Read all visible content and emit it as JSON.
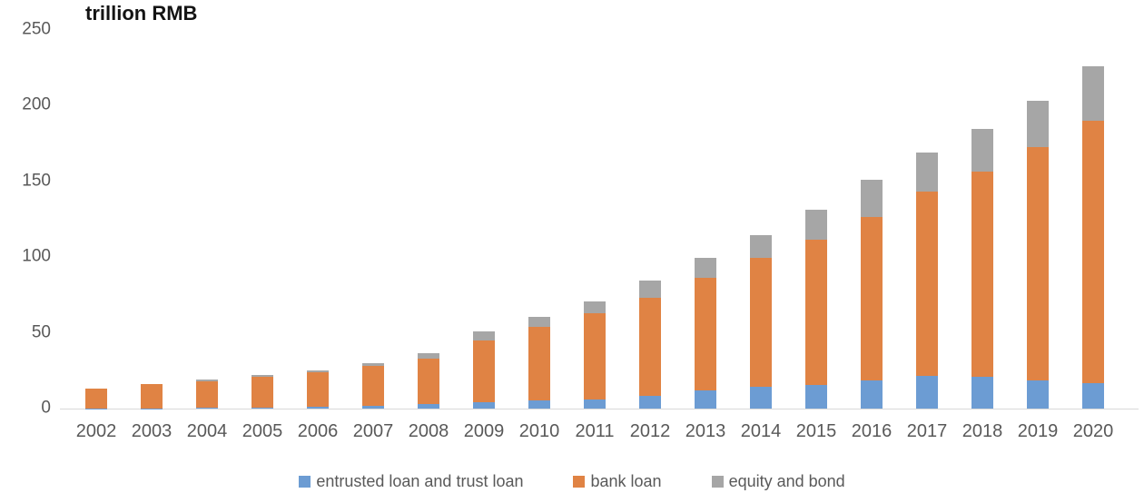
{
  "chart_data": {
    "type": "bar",
    "stacked": true,
    "title": "trillion RMB",
    "categories": [
      "2002",
      "2003",
      "2004",
      "2005",
      "2006",
      "2007",
      "2008",
      "2009",
      "2010",
      "2011",
      "2012",
      "2013",
      "2014",
      "2015",
      "2016",
      "2017",
      "2018",
      "2019",
      "2020"
    ],
    "series": [
      {
        "name": "entrusted loan and trust loan",
        "color": "#6C9CD3",
        "values": [
          0.1,
          0.2,
          0.4,
          0.5,
          1.0,
          2.0,
          3.0,
          4.3,
          5.6,
          6.2,
          8.6,
          11.8,
          14.4,
          15.8,
          18.3,
          21.6,
          21.0,
          18.6,
          17.0
        ]
      },
      {
        "name": "bank loan",
        "color": "#E08344",
        "values": [
          13.0,
          15.7,
          17.9,
          20.3,
          23.0,
          26.4,
          30.0,
          40.8,
          48.4,
          56.8,
          64.7,
          74.5,
          85.3,
          95.9,
          108.4,
          121.7,
          135.7,
          154.1,
          173.2
        ]
      },
      {
        "name": "equity and bond",
        "color": "#A6A6A6",
        "values": [
          0.4,
          0.5,
          1.0,
          1.3,
          1.1,
          1.8,
          3.4,
          6.1,
          6.4,
          7.7,
          11.0,
          13.4,
          15.0,
          19.4,
          24.2,
          25.6,
          28.0,
          30.4,
          36.0
        ]
      }
    ],
    "totals": [
      13.5,
      16.4,
      19.3,
      22.1,
      25.1,
      30.2,
      36.4,
      51.2,
      60.4,
      70.7,
      84.3,
      99.7,
      114.7,
      131.1,
      150.9,
      168.9,
      184.7,
      203.1,
      226.2
    ],
    "ylim": [
      0,
      250
    ],
    "yticks": [
      0,
      50,
      100,
      150,
      200,
      250
    ],
    "grid": false,
    "legend_position": "bottom",
    "axis_label_color": "#595959",
    "baseline_color": "#D9D9D9"
  }
}
